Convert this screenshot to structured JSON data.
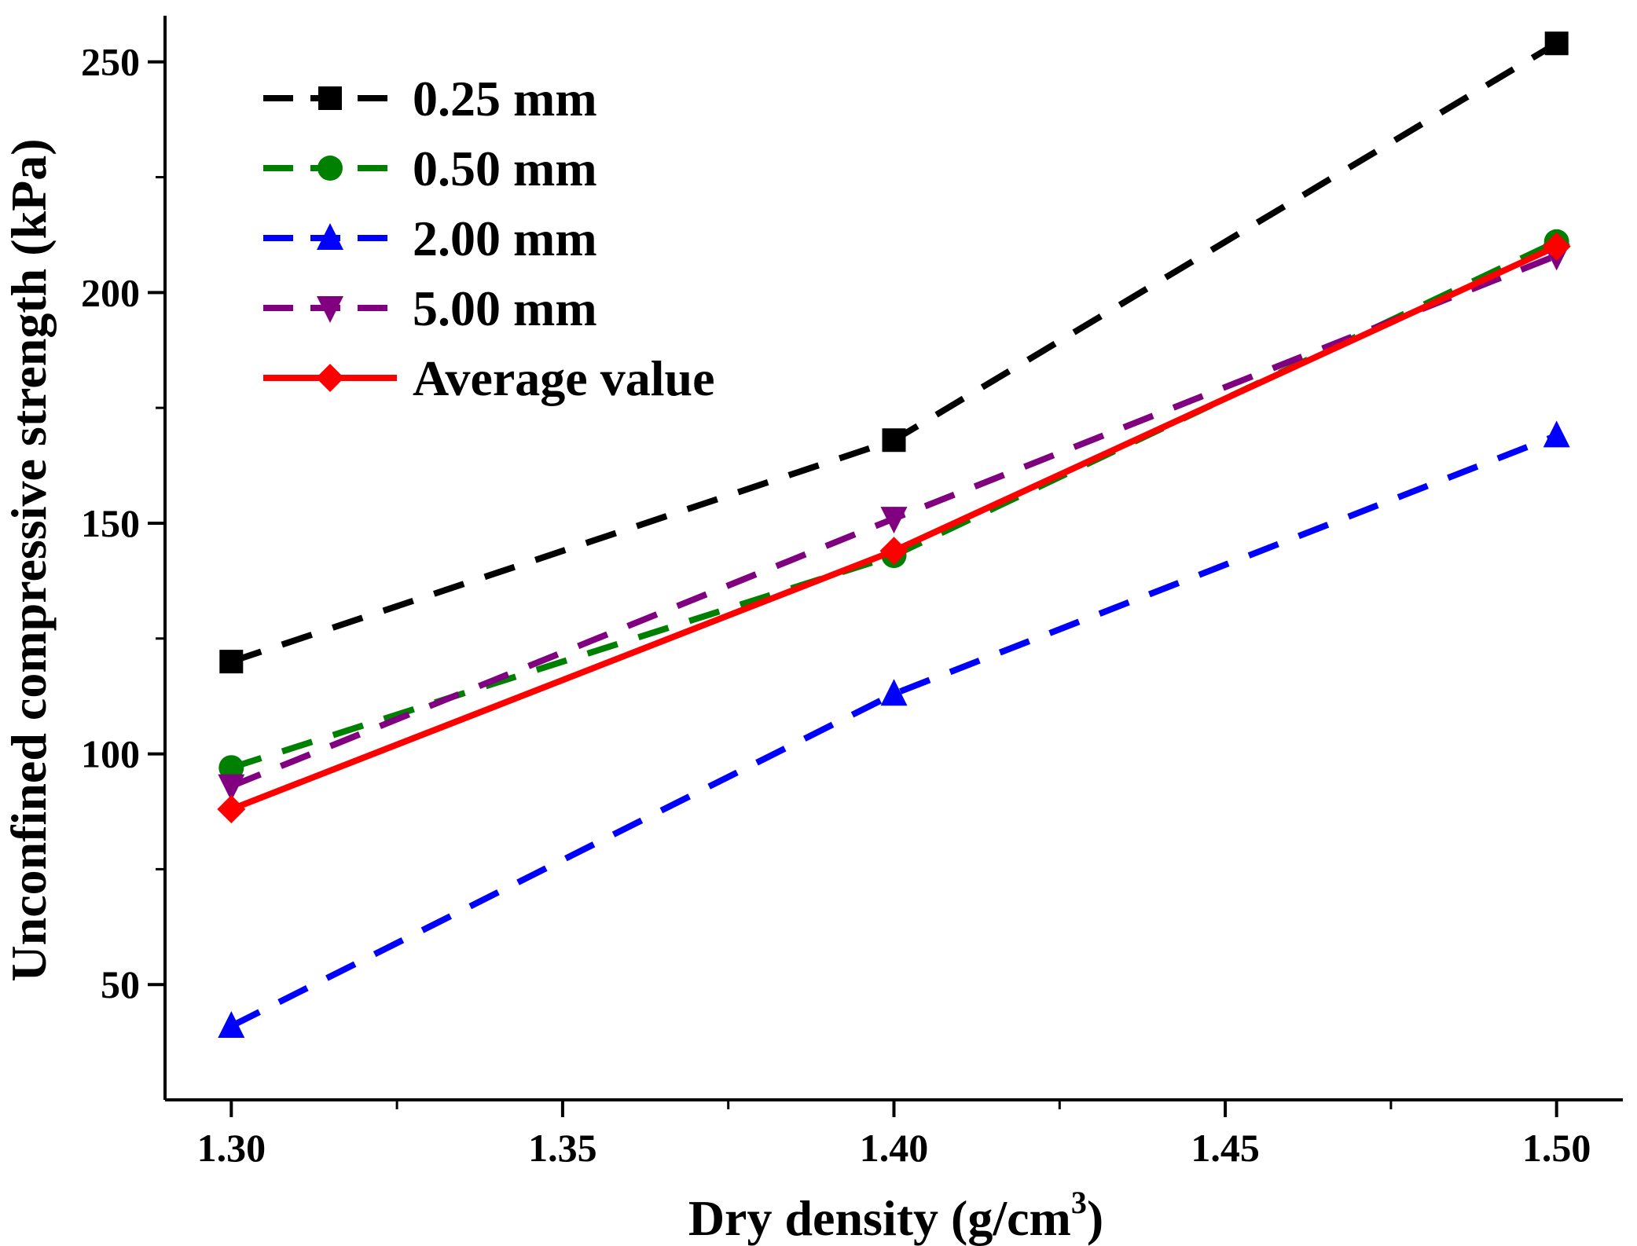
{
  "chart_data": {
    "type": "line",
    "title": "",
    "xlabel": "Dry density (g/cm",
    "xlabel_superscript": "3",
    "xlabel_suffix": ")",
    "ylabel": "Unconfined compressive strength (kPa)",
    "xlim": [
      1.29,
      1.51
    ],
    "ylim": [
      25,
      260
    ],
    "x_ticks": [
      1.3,
      1.35,
      1.4,
      1.45,
      1.5
    ],
    "x_tick_labels": [
      "1.30",
      "1.35",
      "1.40",
      "1.45",
      "1.50"
    ],
    "x_minor_ticks": [
      1.325,
      1.375,
      1.425,
      1.475
    ],
    "y_ticks": [
      50,
      100,
      150,
      200,
      250
    ],
    "y_tick_labels": [
      "50",
      "100",
      "150",
      "200",
      "250"
    ],
    "y_minor_ticks": [
      75,
      125,
      175,
      225
    ],
    "grid": false,
    "legend_position": "top-left",
    "x": [
      1.3,
      1.4,
      1.5
    ],
    "series": [
      {
        "name": "0.25 mm",
        "values": [
          120,
          168,
          254
        ],
        "color": "#000000",
        "marker": "square",
        "dashed": true
      },
      {
        "name": "0.50 mm",
        "values": [
          97,
          143,
          211
        ],
        "color": "#008000",
        "marker": "circle",
        "dashed": true
      },
      {
        "name": "2.00 mm",
        "values": [
          41,
          113,
          169
        ],
        "color": "#0000ff",
        "marker": "triangle-up",
        "dashed": true
      },
      {
        "name": "5.00 mm",
        "values": [
          93,
          151,
          208
        ],
        "color": "#800080",
        "marker": "triangle-down",
        "dashed": true
      },
      {
        "name": "Average value",
        "values": [
          88,
          144,
          210
        ],
        "color": "#ff0000",
        "marker": "diamond",
        "dashed": false
      }
    ]
  }
}
